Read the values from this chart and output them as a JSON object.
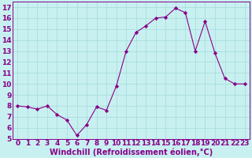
{
  "x": [
    0,
    1,
    2,
    3,
    4,
    5,
    6,
    7,
    8,
    9,
    10,
    11,
    12,
    13,
    14,
    15,
    16,
    17,
    18,
    19,
    20,
    21,
    22,
    23
  ],
  "y": [
    8.0,
    7.9,
    7.7,
    8.0,
    7.2,
    6.7,
    5.3,
    6.3,
    7.9,
    7.6,
    9.8,
    13.0,
    14.7,
    15.3,
    16.0,
    16.1,
    16.9,
    16.5,
    13.0,
    15.7,
    12.8,
    10.5,
    10.0,
    10.0
  ],
  "line_color": "#880088",
  "marker": "D",
  "marker_size": 2.2,
  "bg_color": "#c8f0f0",
  "grid_color": "#aadddd",
  "xlabel": "Windchill (Refroidissement éolien,°C)",
  "xlim": [
    -0.5,
    23.5
  ],
  "ylim": [
    5,
    17.5
  ],
  "yticks": [
    5,
    6,
    7,
    8,
    9,
    10,
    11,
    12,
    13,
    14,
    15,
    16,
    17
  ],
  "xticks": [
    0,
    1,
    2,
    3,
    4,
    5,
    6,
    7,
    8,
    9,
    10,
    11,
    12,
    13,
    14,
    15,
    16,
    17,
    18,
    19,
    20,
    21,
    22,
    23
  ],
  "tick_color": "#880088",
  "tick_fontsize": 6.5,
  "xlabel_fontsize": 7,
  "axis_color": "#880088",
  "spine_color": "#880088"
}
